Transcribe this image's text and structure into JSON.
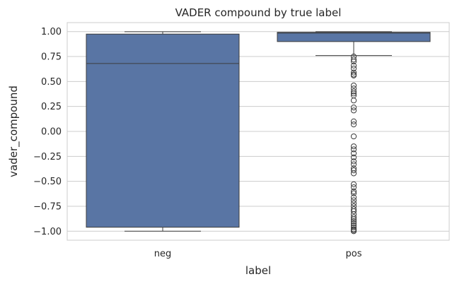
{
  "chart_data": {
    "type": "box",
    "title": "VADER compound by true label",
    "xlabel": "label",
    "ylabel": "vader_compound",
    "ylim": [
      -1.09,
      1.09
    ],
    "yticks": [
      1.0,
      0.75,
      0.5,
      0.25,
      0.0,
      -0.25,
      -0.5,
      -0.75,
      -1.0
    ],
    "ytick_labels": [
      "1.00",
      "0.75",
      "0.50",
      "0.25",
      "0.00",
      "−0.25",
      "−0.50",
      "−0.75",
      "−1.00"
    ],
    "grid": true,
    "color": "#5975a4",
    "categories": [
      "neg",
      "pos"
    ],
    "boxes": [
      {
        "label": "neg",
        "whislo": -1.0,
        "q1": -0.96,
        "median": 0.68,
        "q3": 0.975,
        "whishi": 0.999,
        "fliers": []
      },
      {
        "label": "pos",
        "whislo": 0.76,
        "q1": 0.9,
        "median": 0.985,
        "q3": 0.993,
        "whishi": 0.999,
        "fliers": [
          0.75,
          0.72,
          0.7,
          0.66,
          0.63,
          0.59,
          0.57,
          0.56,
          0.46,
          0.43,
          0.4,
          0.38,
          0.36,
          0.31,
          0.24,
          0.21,
          0.1,
          0.07,
          -0.05,
          -0.15,
          -0.18,
          -0.22,
          -0.26,
          -0.3,
          -0.33,
          -0.37,
          -0.39,
          -0.42,
          -0.53,
          -0.56,
          -0.6,
          -0.62,
          -0.66,
          -0.69,
          -0.72,
          -0.75,
          -0.78,
          -0.8,
          -0.83,
          -0.86,
          -0.88,
          -0.9,
          -0.92,
          -0.94,
          -0.96,
          -0.98,
          -0.99,
          -1.0
        ]
      }
    ]
  }
}
